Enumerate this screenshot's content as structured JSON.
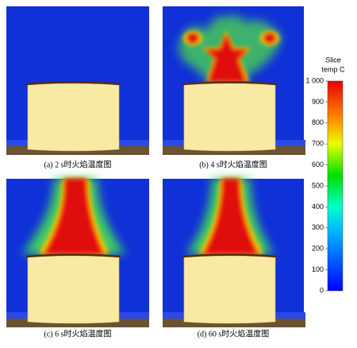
{
  "panels": [
    {
      "caption": "(a) 2 s时火焰温度图"
    },
    {
      "caption": "(b)  4 s时火焰温度图"
    },
    {
      "caption": "(c) 6 s时火焰温度图"
    },
    {
      "caption": "(d) 60 s时火焰温度图"
    }
  ],
  "colorbar": {
    "title": "Slice",
    "unit": "temp C",
    "range": [
      0,
      1000
    ],
    "ticks": [
      0,
      100,
      200,
      300,
      400,
      500,
      600,
      700,
      800,
      900,
      {
        "value": 1000,
        "label": "1 000"
      }
    ]
  }
}
